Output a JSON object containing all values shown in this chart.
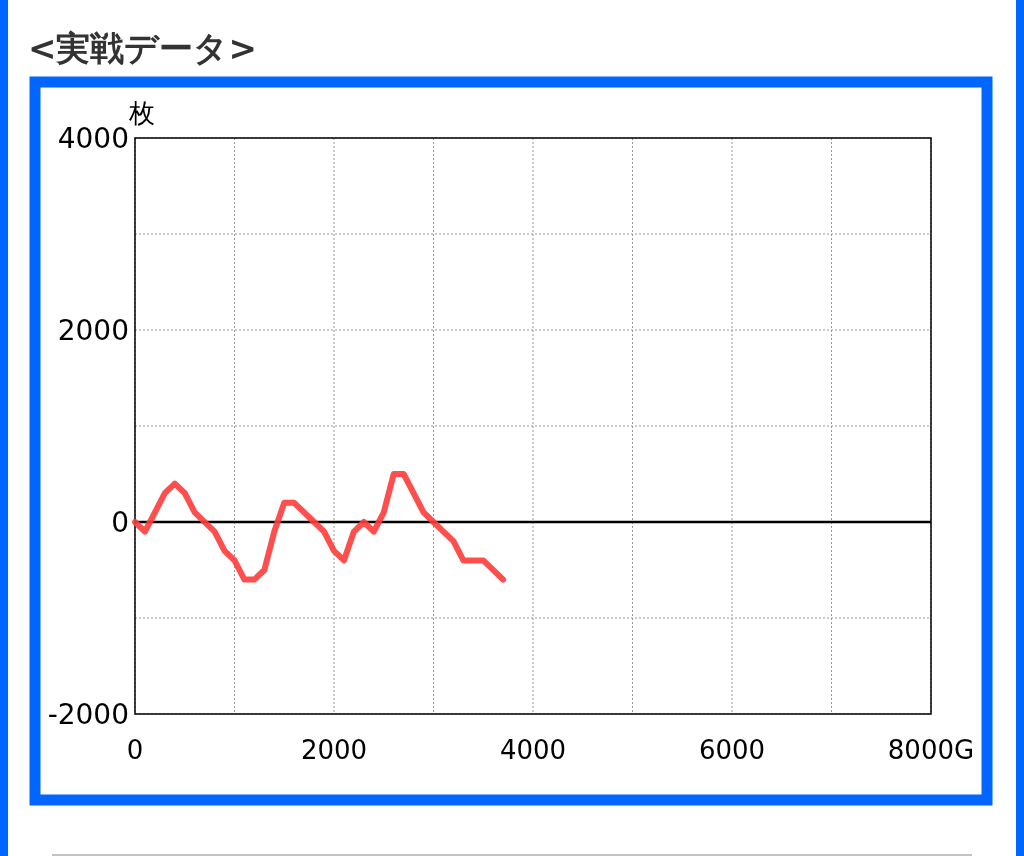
{
  "chart_data": {
    "type": "line",
    "title": "<実戦データ>",
    "ylabel": "枚",
    "x": [
      0,
      100,
      300,
      400,
      500,
      600,
      800,
      900,
      1000,
      1100,
      1200,
      1300,
      1400,
      1500,
      1600,
      1700,
      1800,
      1900,
      2000,
      2100,
      2200,
      2300,
      2400,
      2500,
      2600,
      2700,
      2800,
      2900,
      3000,
      3100,
      3200,
      3300,
      3500,
      3700
    ],
    "series": [
      {
        "color": "#ff3b3b",
        "values": [
          0,
          -100,
          300,
          400,
          300,
          100,
          -100,
          -300,
          -400,
          -600,
          -600,
          -500,
          -100,
          200,
          200,
          100,
          0,
          -100,
          -300,
          -400,
          -100,
          0,
          -100,
          100,
          500,
          500,
          300,
          100,
          0,
          -100,
          -200,
          -400,
          -400,
          -600
        ]
      }
    ],
    "xlim": [
      0,
      8000
    ],
    "xticks": [
      0,
      {
        "value": 1000,
        "label": null
      },
      2000,
      {
        "value": 3000,
        "label": null
      },
      4000,
      {
        "value": 5000,
        "label": null
      },
      6000,
      {
        "value": 7000,
        "label": null
      },
      {
        "value": 8000,
        "label": "8000G"
      }
    ],
    "ylim": [
      -2000,
      4000
    ],
    "yticks": [
      -2000,
      {
        "value": -1000,
        "label": null
      },
      0,
      {
        "value": 1000,
        "label": null
      },
      2000,
      {
        "value": 3000,
        "label": null
      },
      4000
    ],
    "ref_lines": [
      {
        "axis": "y",
        "value": 0,
        "color": "#000000"
      }
    ],
    "grid": true,
    "marker": "none",
    "line_style": "solid"
  }
}
